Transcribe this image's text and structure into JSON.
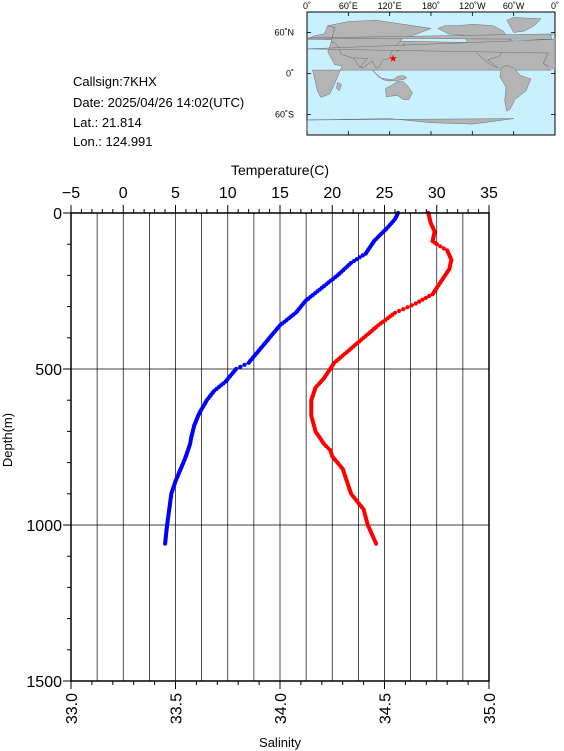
{
  "info": {
    "callsign": "Callsign:7KHX",
    "date": "Date:  2025/04/26 14:02(UTC)",
    "lat": "Lat.:  21.814",
    "lon": "Lon.:  124.991"
  },
  "map": {
    "lon_labels": [
      "0˚",
      "60˚E",
      "120˚E",
      "180˚",
      "120˚W",
      "60˚W",
      "0˚"
    ],
    "lat_labels": [
      "60˚N",
      "0˚",
      "60˚S"
    ],
    "station": {
      "lat": 21.814,
      "lon": 124.991
    },
    "colors": {
      "ocean": "#c8f0ff",
      "land": "#b4b4b4",
      "marker": "#ff0000"
    }
  },
  "chart_data": {
    "type": "line",
    "top_axis": {
      "label": "Temperature(C)",
      "range": [
        -5,
        35
      ],
      "ticks": [
        "−5",
        "0",
        "5",
        "10",
        "15",
        "20",
        "25",
        "30",
        "35"
      ]
    },
    "bottom_axis": {
      "label": "Salinity",
      "range": [
        33.0,
        35.0
      ],
      "ticks": [
        "33.0",
        "33.5",
        "34.0",
        "34.5",
        "35.0"
      ]
    },
    "y_axis": {
      "label": "Depth(m)",
      "range": [
        0,
        1500
      ],
      "ticks": [
        "0",
        "500",
        "1000",
        "1500"
      ],
      "inverted": true
    },
    "grid": true,
    "series": [
      {
        "color": "#0000ff",
        "axis": "temperature",
        "points": [
          [
            26.3,
            0
          ],
          [
            26.0,
            20
          ],
          [
            25.2,
            50
          ],
          [
            24.0,
            90
          ],
          [
            23.2,
            130
          ],
          [
            21.8,
            160
          ],
          [
            20.5,
            200
          ],
          [
            19.0,
            240
          ],
          [
            17.5,
            280
          ],
          [
            16.5,
            320
          ],
          [
            15.0,
            360
          ],
          [
            14.0,
            400
          ],
          [
            13.0,
            440
          ],
          [
            12.0,
            480
          ],
          [
            10.8,
            500
          ],
          [
            9.8,
            540
          ],
          [
            8.7,
            570
          ],
          [
            8.0,
            600
          ],
          [
            7.3,
            640
          ],
          [
            6.8,
            680
          ],
          [
            6.5,
            720
          ],
          [
            6.4,
            740
          ],
          [
            6.0,
            780
          ],
          [
            5.5,
            820
          ],
          [
            5.0,
            860
          ],
          [
            4.6,
            900
          ],
          [
            4.4,
            950
          ],
          [
            4.2,
            1000
          ],
          [
            4.0,
            1060
          ]
        ]
      },
      {
        "color": "#ff0000",
        "axis": "salinity",
        "points": [
          [
            34.71,
            0
          ],
          [
            34.72,
            30
          ],
          [
            34.74,
            60
          ],
          [
            34.73,
            90
          ],
          [
            34.75,
            100
          ],
          [
            34.8,
            120
          ],
          [
            34.82,
            150
          ],
          [
            34.81,
            180
          ],
          [
            34.77,
            220
          ],
          [
            34.73,
            260
          ],
          [
            34.65,
            290
          ],
          [
            34.55,
            320
          ],
          [
            34.47,
            360
          ],
          [
            34.4,
            400
          ],
          [
            34.33,
            440
          ],
          [
            34.26,
            480
          ],
          [
            34.21,
            530
          ],
          [
            34.17,
            560
          ],
          [
            34.15,
            600
          ],
          [
            34.15,
            650
          ],
          [
            34.17,
            700
          ],
          [
            34.21,
            740
          ],
          [
            34.24,
            760
          ],
          [
            34.25,
            780
          ],
          [
            34.3,
            820
          ],
          [
            34.32,
            860
          ],
          [
            34.34,
            900
          ],
          [
            34.4,
            950
          ],
          [
            34.42,
            1000
          ],
          [
            34.46,
            1060
          ]
        ]
      }
    ]
  }
}
